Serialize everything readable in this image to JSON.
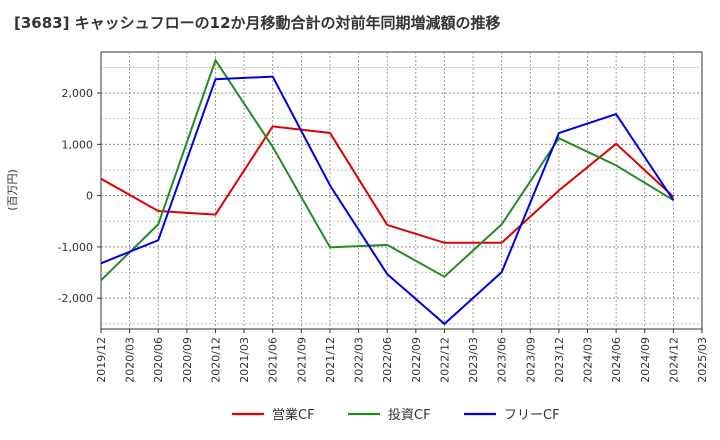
{
  "chart_data": {
    "type": "line",
    "title": "[3683]  キャッシュフローの12か月移動合計の対前年同期増減額の推移",
    "ylabel": "(百万円)",
    "xlabel": "",
    "x_ticks": [
      "2019/12",
      "2020/03",
      "2020/06",
      "2020/09",
      "2020/12",
      "2021/03",
      "2021/06",
      "2021/09",
      "2021/12",
      "2022/03",
      "2022/06",
      "2022/09",
      "2022/12",
      "2023/03",
      "2023/06",
      "2023/09",
      "2023/12",
      "2024/03",
      "2024/06",
      "2024/09",
      "2024/12",
      "2025/03"
    ],
    "y_ticks": [
      2000,
      1000,
      0,
      -1000,
      -2000
    ],
    "y_tick_labels": [
      "2,000",
      "1,000",
      "0",
      "-1,000",
      "-2,000"
    ],
    "ylim": [
      -2600,
      2800
    ],
    "grid": true,
    "legend_position": "bottom",
    "series": [
      {
        "name": "営業CF",
        "color": "#e00000",
        "x": [
          "2019/12",
          "2020/06",
          "2020/12",
          "2021/06",
          "2021/12",
          "2022/06",
          "2022/12",
          "2023/06",
          "2023/12",
          "2024/06",
          "2024/12"
        ],
        "values": [
          330,
          -300,
          -370,
          1350,
          1220,
          -570,
          -920,
          -920,
          100,
          1010,
          -20
        ]
      },
      {
        "name": "投資CF",
        "color": "#228b22",
        "x": [
          "2019/12",
          "2020/06",
          "2020/12",
          "2021/06",
          "2021/12",
          "2022/06",
          "2022/12",
          "2023/06",
          "2023/12",
          "2024/06",
          "2024/12"
        ],
        "values": [
          -1650,
          -560,
          2640,
          950,
          -1010,
          -960,
          -1580,
          -560,
          1120,
          590,
          -90
        ]
      },
      {
        "name": "フリーCF",
        "color": "#0000e0",
        "x": [
          "2019/12",
          "2020/06",
          "2020/12",
          "2021/06",
          "2021/12",
          "2022/06",
          "2022/12",
          "2023/06",
          "2023/12",
          "2024/06",
          "2024/12"
        ],
        "values": [
          -1320,
          -870,
          2270,
          2320,
          200,
          -1530,
          -2500,
          -1490,
          1220,
          1590,
          -90
        ]
      }
    ]
  }
}
